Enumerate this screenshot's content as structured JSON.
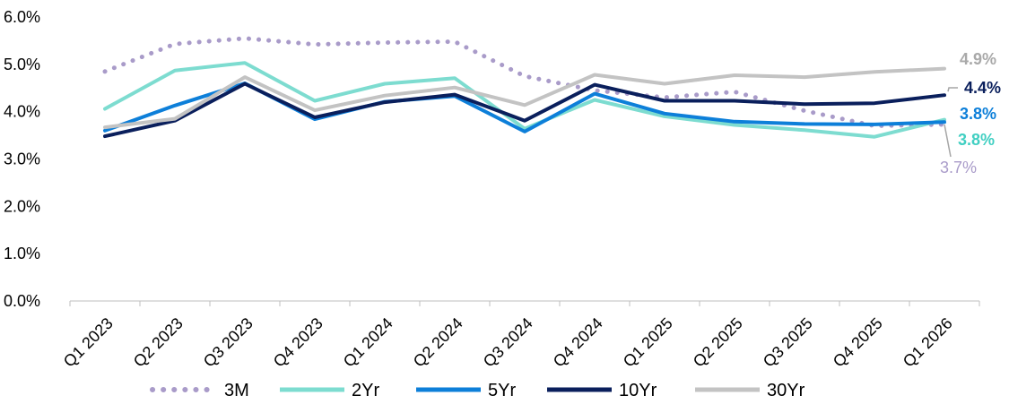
{
  "chart_data": {
    "type": "line",
    "categories": [
      "Q1 2023",
      "Q2 2023",
      "Q3 2023",
      "Q4 2023",
      "Q1 2024",
      "Q2 2024",
      "Q3 2024",
      "Q4 2024",
      "Q1 2025",
      "Q2 2025",
      "Q3 2025",
      "Q4 2025",
      "Q1 2026"
    ],
    "y_ticks": [
      "0.0%",
      "1.0%",
      "2.0%",
      "3.0%",
      "4.0%",
      "5.0%",
      "6.0%"
    ],
    "ylim": [
      0,
      6
    ],
    "grid": false,
    "legend_position": "bottom",
    "series": [
      {
        "name": "3M",
        "color": "#a99bc9",
        "style": "dotted",
        "values": [
          4.85,
          5.43,
          5.55,
          5.42,
          5.46,
          5.48,
          4.75,
          4.45,
          4.3,
          4.42,
          4.02,
          3.7,
          3.73
        ],
        "end_label": "3.7%",
        "end_label_color": "#a99bc9",
        "end_label_bold": false
      },
      {
        "name": "2Yr",
        "color": "#7ddcd0",
        "style": "solid",
        "values": [
          4.06,
          4.87,
          5.03,
          4.23,
          4.59,
          4.71,
          3.64,
          4.25,
          3.9,
          3.72,
          3.61,
          3.47,
          3.83
        ],
        "end_label": "3.8%",
        "end_label_color": "#41cfc2",
        "end_label_bold": true
      },
      {
        "name": "5Yr",
        "color": "#0d7fd9",
        "style": "solid",
        "values": [
          3.6,
          4.13,
          4.6,
          3.84,
          4.21,
          4.33,
          3.58,
          4.38,
          3.96,
          3.79,
          3.74,
          3.73,
          3.78
        ],
        "end_label": "3.8%",
        "end_label_color": "#0d7fd9",
        "end_label_bold": true
      },
      {
        "name": "10Yr",
        "color": "#0a1f5c",
        "style": "solid",
        "values": [
          3.48,
          3.81,
          4.59,
          3.88,
          4.2,
          4.36,
          3.81,
          4.57,
          4.23,
          4.23,
          4.16,
          4.18,
          4.35
        ],
        "end_label": "4.4%",
        "end_label_color": "#0a1f5c",
        "end_label_bold": true
      },
      {
        "name": "30Yr",
        "color": "#c3c3c3",
        "style": "solid",
        "values": [
          3.67,
          3.85,
          4.73,
          4.03,
          4.34,
          4.51,
          4.14,
          4.78,
          4.59,
          4.77,
          4.73,
          4.84,
          4.91
        ],
        "end_label": "4.9%",
        "end_label_color": "#a9a9a9",
        "end_label_bold": true
      }
    ]
  }
}
